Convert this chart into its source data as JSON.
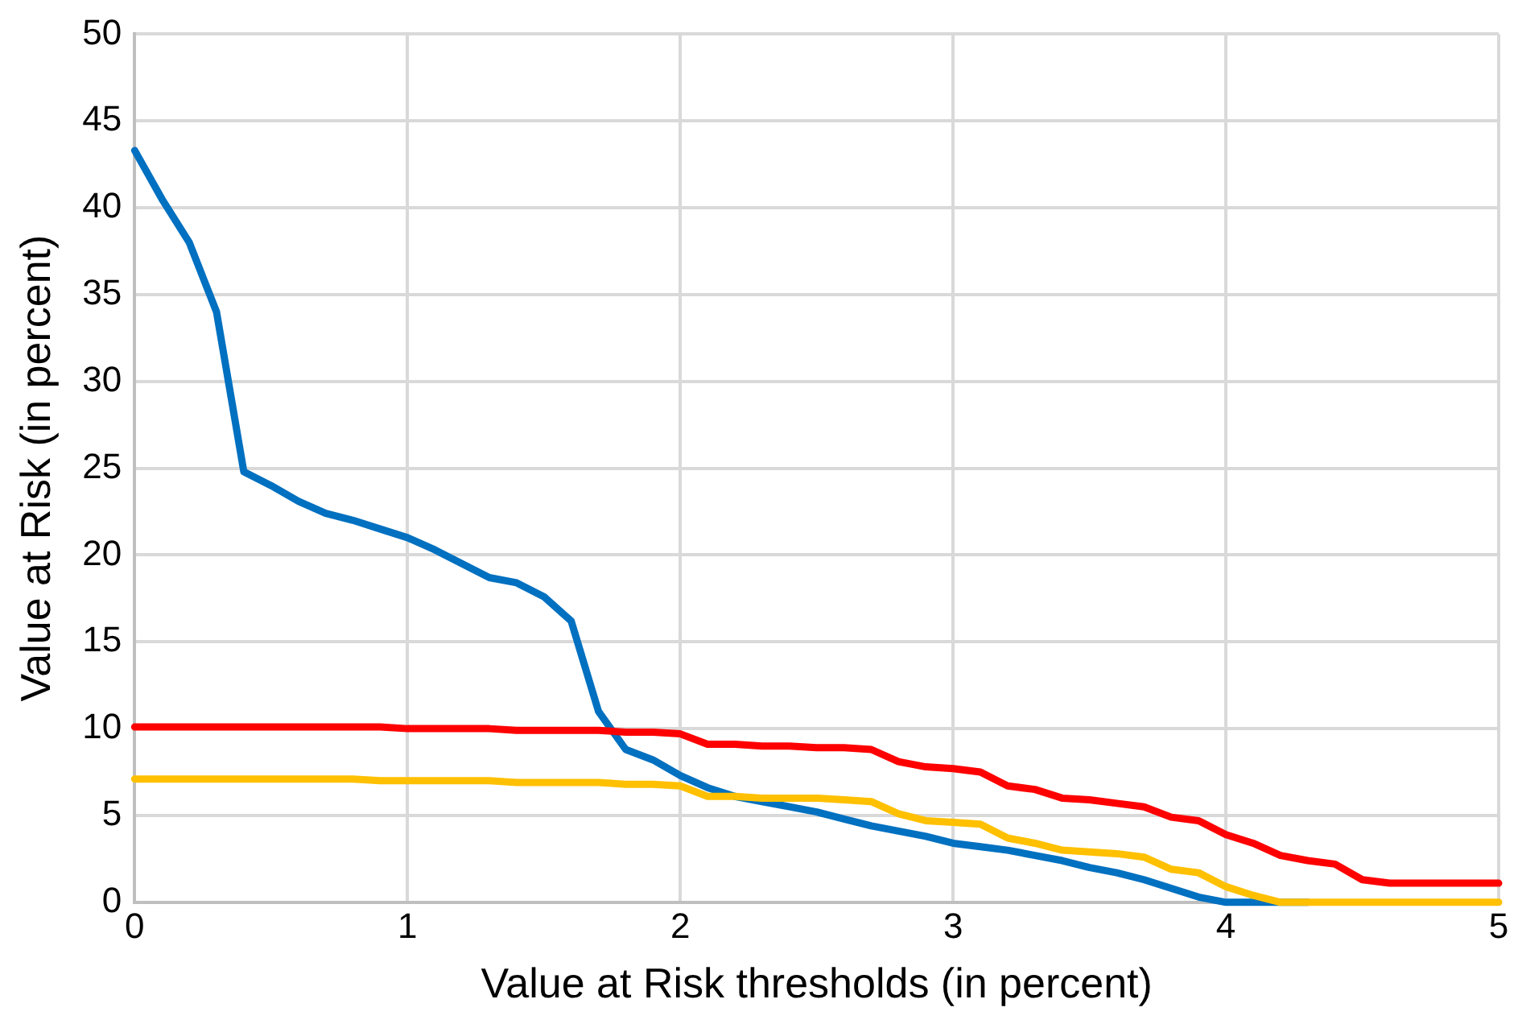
{
  "chart_data": {
    "type": "line",
    "xlabel": "Value at Risk thresholds (in percent)",
    "ylabel": "Value at Risk (in percent)",
    "x": [
      0,
      0.1,
      0.2,
      0.3,
      0.4,
      0.5,
      0.6,
      0.7,
      0.8,
      0.9,
      1,
      1.1,
      1.2,
      1.3,
      1.4,
      1.5,
      1.6,
      1.7,
      1.8,
      1.9,
      2,
      2.1,
      2.2,
      2.3,
      2.4,
      2.5,
      2.6,
      2.7,
      2.8,
      2.9,
      3,
      3.1,
      3.2,
      3.3,
      3.4,
      3.5,
      3.6,
      3.7,
      3.8,
      3.9,
      4,
      4.1,
      4.2,
      4.3,
      4.4,
      4.5,
      4.6,
      4.7,
      4.8,
      4.9,
      5
    ],
    "series": [
      {
        "color": "#0070c0",
        "values": [
          43.3,
          40.5,
          38,
          34,
          24.8,
          24,
          23.1,
          22.4,
          22,
          21.5,
          21,
          20.3,
          19.5,
          18.7,
          18.4,
          17.6,
          16.2,
          11,
          8.8,
          8.2,
          7.3,
          6.6,
          6.1,
          5.8,
          5.5,
          5.2,
          4.8,
          4.4,
          4.1,
          3.8,
          3.4,
          3.2,
          3,
          2.7,
          2.4,
          2,
          1.7,
          1.3,
          0.8,
          0.3,
          0,
          0,
          0,
          0,
          null,
          null,
          null,
          null,
          null,
          null,
          null
        ]
      },
      {
        "color": "#ff0000",
        "values": [
          10.1,
          10.1,
          10.1,
          10.1,
          10.1,
          10.1,
          10.1,
          10.1,
          10.1,
          10.1,
          10,
          10,
          10,
          10,
          9.9,
          9.9,
          9.9,
          9.9,
          9.8,
          9.8,
          9.7,
          9.1,
          9.1,
          9,
          9,
          8.9,
          8.9,
          8.8,
          8.1,
          7.8,
          7.7,
          7.5,
          6.7,
          6.5,
          6,
          5.9,
          5.7,
          5.5,
          4.9,
          4.7,
          3.9,
          3.4,
          2.7,
          2.4,
          2.2,
          1.3,
          1.1,
          1.1,
          1.1,
          1.1,
          1.1
        ]
      },
      {
        "color": "#ffc000",
        "values": [
          7.1,
          7.1,
          7.1,
          7.1,
          7.1,
          7.1,
          7.1,
          7.1,
          7.1,
          7,
          7,
          7,
          7,
          7,
          6.9,
          6.9,
          6.9,
          6.9,
          6.8,
          6.8,
          6.7,
          6.1,
          6.1,
          6,
          6,
          6,
          5.9,
          5.8,
          5.1,
          4.7,
          4.6,
          4.5,
          3.7,
          3.4,
          3,
          2.9,
          2.8,
          2.6,
          1.9,
          1.7,
          0.9,
          0.4,
          0,
          0,
          0,
          0,
          0,
          0,
          0,
          0,
          0
        ]
      }
    ],
    "xlim": [
      0,
      5
    ],
    "xticks": [
      0,
      1,
      2,
      3,
      4,
      5
    ],
    "ylim": [
      0,
      50
    ],
    "yticks": [
      0,
      5,
      10,
      15,
      20,
      25,
      30,
      35,
      40,
      45,
      50
    ],
    "grid": true,
    "legend": false,
    "marker": "none",
    "line_style": "solid"
  }
}
